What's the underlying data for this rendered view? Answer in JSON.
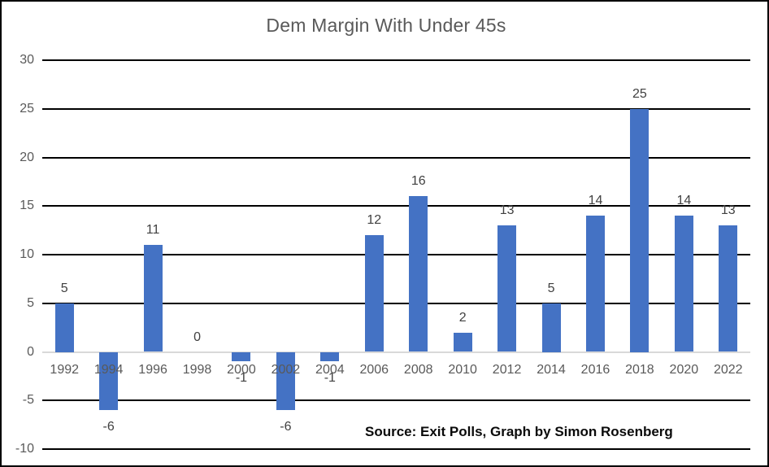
{
  "chart_data": {
    "type": "bar",
    "title": "Dem Margin With Under 45s",
    "categories": [
      "1992",
      "1994",
      "1996",
      "1998",
      "2000",
      "2002",
      "2004",
      "2006",
      "2008",
      "2010",
      "2012",
      "2014",
      "2016",
      "2018",
      "2020",
      "2022"
    ],
    "values": [
      5,
      -6,
      11,
      0,
      -1,
      -6,
      -1,
      12,
      16,
      2,
      13,
      5,
      14,
      25,
      14,
      13
    ],
    "xlabel": "",
    "ylabel": "",
    "ylim": [
      -10,
      30
    ],
    "yticks": [
      30,
      25,
      20,
      15,
      10,
      5,
      0,
      -5,
      -10
    ],
    "grid": true,
    "legend": false,
    "data_labels": true,
    "source_note": "Source: Exit Polls, Graph by Simon Rosenberg",
    "colors": {
      "bar": "#4472C4",
      "gridline": "#000000",
      "zero_line": "#D9D9D9",
      "axis_label": "#595959",
      "data_label": "#404040",
      "title": "#595959",
      "source": "#0A0A0A",
      "border": "#000000",
      "background": "#FFFFFF"
    }
  }
}
